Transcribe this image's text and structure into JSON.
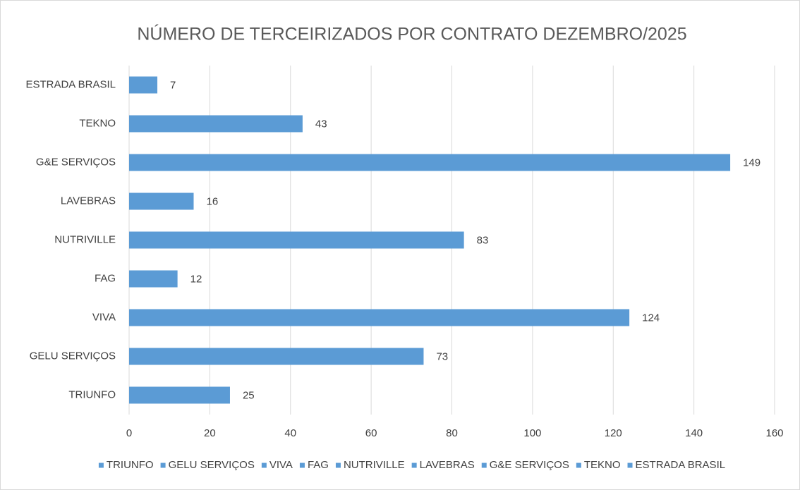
{
  "chart_data": {
    "type": "bar",
    "orientation": "horizontal",
    "title": "NÚMERO DE TERCEIRIZADOS POR CONTRATO  DEZEMBRO/2025",
    "categories": [
      "TRIUNFO",
      "GELU SERVIÇOS",
      "VIVA",
      "FAG",
      "NUTRIVILLE",
      "LAVEBRAS",
      "G&E SERVIÇOS",
      "TEKNO",
      "ESTRADA BRASIL"
    ],
    "values": [
      25,
      73,
      124,
      12,
      83,
      16,
      149,
      43,
      7
    ],
    "color": "#5b9bd5",
    "xlim": [
      0,
      160
    ],
    "xticks": [
      0,
      20,
      40,
      60,
      80,
      100,
      120,
      140,
      160
    ],
    "grid": true,
    "legend": "bottom"
  }
}
